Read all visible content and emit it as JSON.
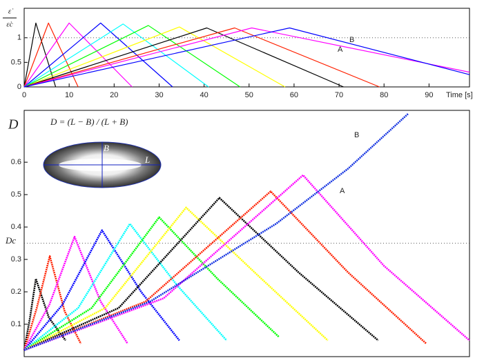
{
  "chart_data": [
    {
      "type": "line",
      "ylabel": [
        "ε̇",
        "ε̇c"
      ],
      "xlabel": "Time [s]",
      "xlim": [
        0,
        99
      ],
      "ylim": [
        0,
        1.6
      ],
      "xticks": [
        0,
        10,
        20,
        30,
        40,
        50,
        60,
        70,
        80,
        90
      ],
      "yticks": [
        0,
        0.5,
        1
      ],
      "reference_line": 1,
      "annotations": [
        "A",
        "B"
      ],
      "series": [
        {
          "color": "#000000",
          "x": [
            0,
            2.6,
            7
          ],
          "values": [
            0,
            1.3,
            0
          ]
        },
        {
          "color": "#ff2000",
          "x": [
            0,
            5.4,
            12
          ],
          "values": [
            0,
            1.3,
            0
          ]
        },
        {
          "color": "#ff00ff",
          "x": [
            0,
            10,
            24
          ],
          "values": [
            0,
            1.3,
            0
          ]
        },
        {
          "color": "#0000ff",
          "x": [
            0,
            17,
            33
          ],
          "values": [
            0,
            1.3,
            0
          ]
        },
        {
          "color": "#00ffff",
          "x": [
            0,
            22,
            41
          ],
          "values": [
            0,
            1.28,
            0
          ]
        },
        {
          "color": "#00ff00",
          "x": [
            0,
            27.6,
            48
          ],
          "values": [
            0,
            1.25,
            0
          ]
        },
        {
          "color": "#ffff00",
          "x": [
            0,
            34.5,
            58
          ],
          "values": [
            0,
            1.22,
            0
          ]
        },
        {
          "color": "#000000",
          "x": [
            0,
            40.6,
            71
          ],
          "values": [
            0,
            1.2,
            0
          ]
        },
        {
          "color": "#ff2000",
          "x": [
            0,
            46.8,
            79
          ],
          "values": [
            0,
            1.2,
            0
          ]
        },
        {
          "color": "#ff00ff",
          "x": [
            0,
            50.6,
            99
          ],
          "values": [
            0,
            1.2,
            0.3
          ]
        },
        {
          "color": "#0000ff",
          "x": [
            0,
            59,
            99
          ],
          "values": [
            0,
            1.2,
            0.25
          ]
        }
      ]
    },
    {
      "type": "line",
      "ylabel": "D",
      "formula": "D = (L − B) / (L + B)",
      "reference_label": "Dc",
      "inset_labels": [
        "B",
        "L"
      ],
      "xlim": [
        0,
        99
      ],
      "ylim": [
        0,
        0.76
      ],
      "yticks": [
        0.1,
        0.2,
        0.3,
        0.4,
        0.5,
        0.6
      ],
      "reference_line": 0.35,
      "annotations": [
        "A",
        "B"
      ],
      "series": [
        {
          "color": "#000000",
          "x": [
            0,
            1.3,
            2.6,
            5.5,
            9.2
          ],
          "values": [
            0.02,
            0.12,
            0.24,
            0.12,
            0.05
          ]
        },
        {
          "color": "#ff2000",
          "x": [
            0,
            2.8,
            5.7,
            9,
            12.6
          ],
          "values": [
            0.02,
            0.15,
            0.31,
            0.14,
            0.04
          ]
        },
        {
          "color": "#ff00ff",
          "x": [
            0,
            5.6,
            11.2,
            17,
            23
          ],
          "values": [
            0.02,
            0.16,
            0.37,
            0.17,
            0.04
          ]
        },
        {
          "color": "#0000ff",
          "x": [
            0,
            8.5,
            17.3,
            26,
            34.5
          ],
          "values": [
            0.02,
            0.16,
            0.39,
            0.2,
            0.05
          ]
        },
        {
          "color": "#00ffff",
          "x": [
            0,
            12,
            23.5,
            34,
            45
          ],
          "values": [
            0.02,
            0.15,
            0.41,
            0.22,
            0.05
          ]
        },
        {
          "color": "#00ff00",
          "x": [
            0,
            15,
            30,
            43,
            56.7
          ],
          "values": [
            0.02,
            0.15,
            0.43,
            0.24,
            0.06
          ]
        },
        {
          "color": "#ffff00",
          "x": [
            0,
            18,
            36,
            52,
            67.5
          ],
          "values": [
            0.02,
            0.15,
            0.46,
            0.25,
            0.05
          ]
        },
        {
          "color": "#000000",
          "x": [
            0,
            21,
            43.4,
            61,
            78.7
          ],
          "values": [
            0.02,
            0.15,
            0.49,
            0.26,
            0.05
          ]
        },
        {
          "color": "#ff2000",
          "x": [
            0,
            27,
            54.8,
            72,
            89.4
          ],
          "values": [
            0.02,
            0.17,
            0.51,
            0.26,
            0.04
          ]
        },
        {
          "color": "#ff00ff",
          "x": [
            0,
            31,
            62,
            80,
            99
          ],
          "values": [
            0.02,
            0.18,
            0.56,
            0.28,
            0.05
          ]
        },
        {
          "color": "#1030e0",
          "x": [
            0,
            28,
            56,
            72,
            85.4
          ],
          "values": [
            0.02,
            0.17,
            0.41,
            0.58,
            0.75
          ]
        }
      ]
    }
  ]
}
